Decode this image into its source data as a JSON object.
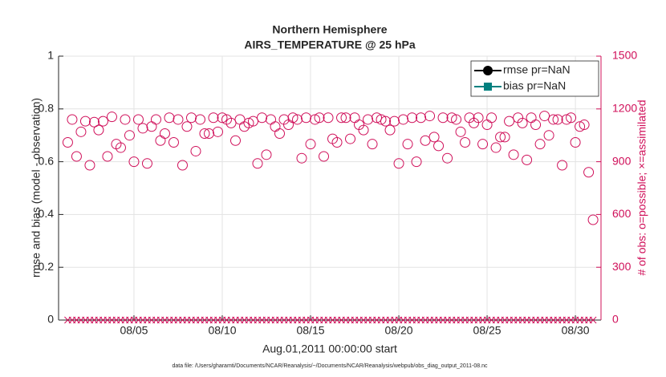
{
  "chart_data": {
    "type": "scatter",
    "title": "Northern Hemisphere",
    "subtitle": "AIRS_TEMPERATURE @ 25 hPa",
    "ylabel": "rmse and bias (model - observation)",
    "y2label": "# of obs: o=possible; ×=assimilated",
    "xlabel": "Aug.01,2011 00:00:00 start",
    "footnote": "data file: /Users/gharamti/Documents/NCAR/Reanalysis/~/Documents/NCAR/Reanalysis/webpub/obs_diag_output_2011-08.nc",
    "xlim": [
      0.73,
      31.45
    ],
    "xticks": [
      {
        "value": 5,
        "label": "08/05"
      },
      {
        "value": 10,
        "label": "08/10"
      },
      {
        "value": 15,
        "label": "08/15"
      },
      {
        "value": 20,
        "label": "08/20"
      },
      {
        "value": 25,
        "label": "08/25"
      },
      {
        "value": 30,
        "label": "08/30"
      }
    ],
    "ylim": [
      0,
      1
    ],
    "yticks": [
      0,
      0.2,
      0.4,
      0.6,
      0.8,
      1
    ],
    "y2lim": [
      0,
      1500
    ],
    "y2ticks": [
      0,
      300,
      600,
      900,
      1200,
      1500
    ],
    "y2color": "#d0105a",
    "grid": true,
    "legend": "upper right",
    "x": [
      1.25,
      1.5,
      1.75,
      2,
      2.25,
      2.5,
      2.75,
      3,
      3.25,
      3.5,
      3.75,
      4,
      4.25,
      4.5,
      4.75,
      5,
      5.25,
      5.5,
      5.75,
      6,
      6.25,
      6.5,
      6.75,
      7,
      7.25,
      7.5,
      7.75,
      8,
      8.25,
      8.5,
      8.75,
      9,
      9.25,
      9.5,
      9.75,
      10,
      10.25,
      10.5,
      10.75,
      11,
      11.25,
      11.5,
      11.75,
      12,
      12.25,
      12.5,
      12.75,
      13,
      13.25,
      13.5,
      13.75,
      14,
      14.25,
      14.5,
      14.75,
      15,
      15.25,
      15.5,
      15.75,
      16,
      16.25,
      16.5,
      16.75,
      17,
      17.25,
      17.5,
      17.75,
      18,
      18.25,
      18.5,
      18.75,
      19,
      19.25,
      19.5,
      19.75,
      20,
      20.25,
      20.5,
      20.75,
      21,
      21.25,
      21.5,
      21.75,
      22,
      22.25,
      22.5,
      22.75,
      23,
      23.25,
      23.5,
      23.75,
      24,
      24.25,
      24.5,
      24.75,
      25,
      25.25,
      25.5,
      25.75,
      26,
      26.25,
      26.5,
      26.75,
      27,
      27.25,
      27.5,
      27.75,
      28,
      28.25,
      28.5,
      28.75,
      29,
      29.25,
      29.5,
      29.75,
      30,
      30.25,
      30.5,
      30.75,
      31
    ],
    "series": [
      {
        "name": "rmse pr=NaN",
        "color": "#000000",
        "marker": "circle"
      },
      {
        "name": "bias pr=NaN",
        "color": "#00807f",
        "marker": "square"
      },
      {
        "color": "#d0105a",
        "marker": "o",
        "axis": "y2",
        "values": [
          1010,
          1140,
          930,
          1070,
          1130,
          880,
          1125,
          1080,
          1130,
          930,
          1155,
          1000,
          980,
          1140,
          1050,
          900,
          1140,
          1090,
          890,
          1100,
          1140,
          1020,
          1060,
          1150,
          1010,
          1140,
          880,
          1100,
          1150,
          960,
          1140,
          1060,
          1060,
          1150,
          1070,
          1150,
          1140,
          1120,
          1020,
          1140,
          1100,
          1120,
          1130,
          890,
          1150,
          940,
          1140,
          1100,
          1060,
          1140,
          1110,
          1150,
          1140,
          920,
          1150,
          1000,
          1140,
          1150,
          930,
          1150,
          1030,
          1010,
          1150,
          1150,
          1030,
          1150,
          1110,
          1080,
          1140,
          1000,
          1150,
          1140,
          1130,
          1080,
          1130,
          890,
          1140,
          1000,
          1150,
          900,
          1150,
          1020,
          1160,
          1040,
          990,
          1150,
          920,
          1150,
          1140,
          1070,
          1010,
          1150,
          1120,
          1150,
          1000,
          1110,
          1150,
          980,
          1040,
          1040,
          1130,
          940,
          1150,
          1120,
          910,
          1150,
          1110,
          1000,
          1160,
          1050,
          1140,
          1140,
          880,
          1140,
          1150,
          1010,
          1100,
          1110,
          840,
          570
        ]
      },
      {
        "color": "#d0105a",
        "marker": "x",
        "axis": "y2",
        "values": [
          0,
          0,
          0,
          0,
          0,
          0,
          0,
          0,
          0,
          0,
          0,
          0,
          0,
          0,
          0,
          0,
          0,
          0,
          0,
          0,
          0,
          0,
          0,
          0,
          0,
          0,
          0,
          0,
          0,
          0,
          0,
          0,
          0,
          0,
          0,
          0,
          0,
          0,
          0,
          0,
          0,
          0,
          0,
          0,
          0,
          0,
          0,
          0,
          0,
          0,
          0,
          0,
          0,
          0,
          0,
          0,
          0,
          0,
          0,
          0,
          0,
          0,
          0,
          0,
          0,
          0,
          0,
          0,
          0,
          0,
          0,
          0,
          0,
          0,
          0,
          0,
          0,
          0,
          0,
          0,
          0,
          0,
          0,
          0,
          0,
          0,
          0,
          0,
          0,
          0,
          0,
          0,
          0,
          0,
          0,
          0,
          0,
          0,
          0,
          0,
          0,
          0,
          0,
          0,
          0,
          0,
          0,
          0,
          0,
          0,
          0,
          0,
          0,
          0,
          0,
          0,
          0,
          0,
          0,
          0
        ]
      }
    ]
  }
}
